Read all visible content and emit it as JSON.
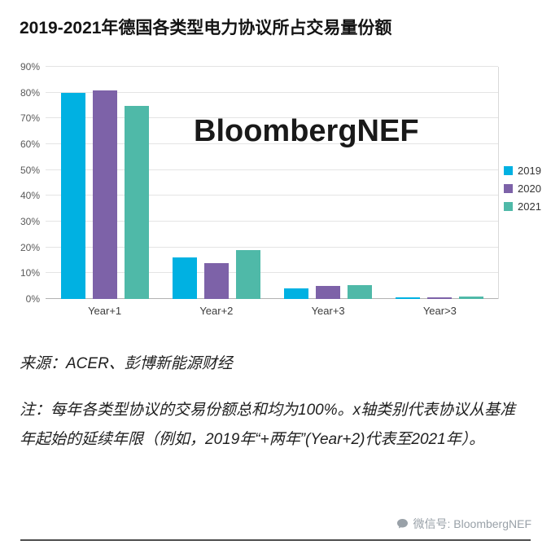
{
  "header": {
    "title": "2019-2021年德国各类型电力协议所占交易量份额"
  },
  "chart_data": {
    "type": "bar",
    "title": "2019-2021年德国各类型电力协议所占交易量份额",
    "watermark": "BloombergNEF",
    "categories": [
      "Year+1",
      "Year+2",
      "Year+3",
      "Year>3"
    ],
    "series": [
      {
        "name": "2019",
        "color": "#00b1e2",
        "values": [
          80,
          16,
          4,
          0.5
        ]
      },
      {
        "name": "2020",
        "color": "#7d62a8",
        "values": [
          81,
          14,
          5,
          0.5
        ]
      },
      {
        "name": "2021",
        "color": "#4fb9a8",
        "values": [
          75,
          19,
          5.5,
          1
        ]
      }
    ],
    "xlabel": "",
    "ylabel": "",
    "ylim": [
      0,
      90
    ],
    "ytick_step": 10,
    "ytick_suffix": "%",
    "grid": true,
    "legend_position": "right"
  },
  "footer": {
    "source": "来源：ACER、彭博新能源财经",
    "note": "注：每年各类型协议的交易份额总和均为100%。x轴类别代表协议从基准年起始的延续年限（例如，2019年“+两年”(Year+2)代表至2021年）。",
    "wechat_label": "微信号: BloombergNEF"
  }
}
